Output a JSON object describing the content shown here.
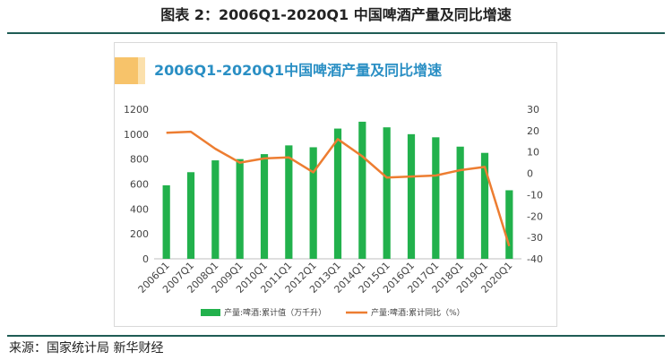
{
  "figure_title": "图表 2：2006Q1-2020Q1 中国啤酒产量及同比增速",
  "source": "来源：国家统计局 新华财经",
  "colors": {
    "bar": "#22b14c",
    "line": "#ed7d31",
    "accent": "#f7c36a",
    "title": "#2a8fc4",
    "rule": "#1f5c55"
  },
  "chart_data": {
    "type": "bar",
    "title": "2006Q1-2020Q1中国啤酒产量及同比增速",
    "categories": [
      "2006Q1",
      "2007Q1",
      "2008Q1",
      "2009Q1",
      "2010Q1",
      "2011Q1",
      "2012Q1",
      "2013Q1",
      "2014Q1",
      "2015Q1",
      "2016Q1",
      "2017Q1",
      "2018Q1",
      "2019Q1",
      "2020Q1"
    ],
    "series": [
      {
        "name": "产量:啤酒:累计值（万千升）",
        "type": "bar",
        "axis": "left",
        "values": [
          590,
          695,
          790,
          800,
          840,
          910,
          895,
          1045,
          1100,
          1055,
          1000,
          975,
          900,
          850,
          550
        ]
      },
      {
        "name": "产量:啤酒:累计同比（%）",
        "type": "line",
        "axis": "right",
        "values": [
          19,
          19.5,
          11.5,
          5,
          7,
          7.5,
          0.5,
          16,
          8,
          -2,
          -1.5,
          -1,
          1.5,
          3,
          -34
        ]
      }
    ],
    "ylim_left": [
      0,
      1200
    ],
    "yticks_left": [
      0,
      200,
      400,
      600,
      800,
      1000,
      1200
    ],
    "ylim_right": [
      -40,
      30
    ],
    "yticks_right": [
      -40,
      -30,
      -20,
      -10,
      0,
      10,
      20,
      30
    ],
    "grid": false,
    "legend": "bottom"
  }
}
